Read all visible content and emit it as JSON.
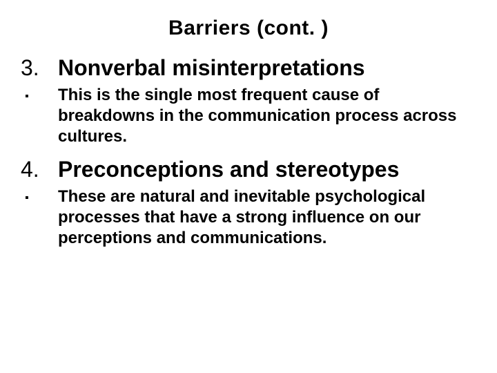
{
  "slide": {
    "title": "Barriers (cont. )",
    "items": [
      {
        "number": "3.",
        "heading": "Nonverbal misinterpretations",
        "bullet": "▪",
        "body": "This is the single most frequent cause of breakdowns in the communication process across cultures."
      },
      {
        "number": "4.",
        "heading": "Preconceptions and stereotypes",
        "bullet": "▪",
        "body": "These are natural and inevitable psychological processes that have a strong influence on our perceptions and communications."
      }
    ]
  },
  "style": {
    "background_color": "#ffffff",
    "text_color": "#000000",
    "title_fontsize": 30,
    "heading_fontsize": 32,
    "body_fontsize": 24,
    "font_family": "Arial",
    "title_weight": "bold",
    "heading_weight": "bold",
    "body_weight": "bold"
  }
}
